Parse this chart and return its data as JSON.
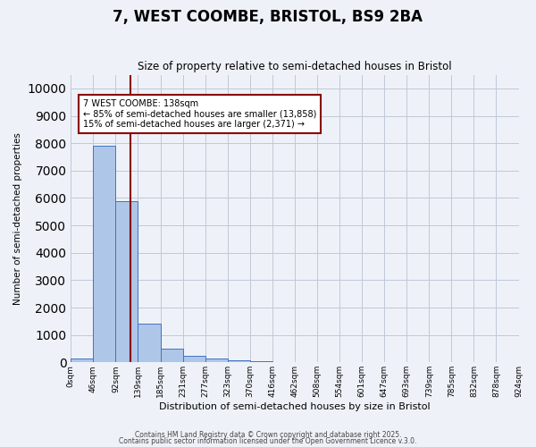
{
  "title": "7, WEST COOMBE, BRISTOL, BS9 2BA",
  "subtitle": "Size of property relative to semi-detached houses in Bristol",
  "xlabel": "Distribution of semi-detached houses by size in Bristol",
  "ylabel": "Number of semi-detached properties",
  "bar_values": [
    150,
    7900,
    5900,
    1400,
    500,
    230,
    130,
    80,
    30,
    5,
    2,
    1,
    0,
    0,
    0,
    0,
    0,
    0,
    0,
    0
  ],
  "bar_labels": [
    "0sqm",
    "46sqm",
    "92sqm",
    "139sqm",
    "185sqm",
    "231sqm",
    "277sqm",
    "323sqm",
    "370sqm",
    "416sqm",
    "462sqm",
    "508sqm",
    "554sqm",
    "601sqm",
    "647sqm",
    "693sqm",
    "739sqm",
    "785sqm",
    "832sqm",
    "878sqm",
    "924sqm"
  ],
  "bar_color": "#aec6e8",
  "bar_edge_color": "#4472c4",
  "red_line_x": 2.65,
  "annotation_title": "7 WEST COOMBE: 138sqm",
  "annotation_line1": "← 85% of semi-detached houses are smaller (13,858)",
  "annotation_line2": "15% of semi-detached houses are larger (2,371) →",
  "ylim": [
    0,
    10500
  ],
  "yticks": [
    0,
    1000,
    2000,
    3000,
    4000,
    5000,
    6000,
    7000,
    8000,
    9000,
    10000
  ],
  "footer1": "Contains HM Land Registry data © Crown copyright and database right 2025.",
  "footer2": "Contains public sector information licensed under the Open Government Licence v.3.0."
}
